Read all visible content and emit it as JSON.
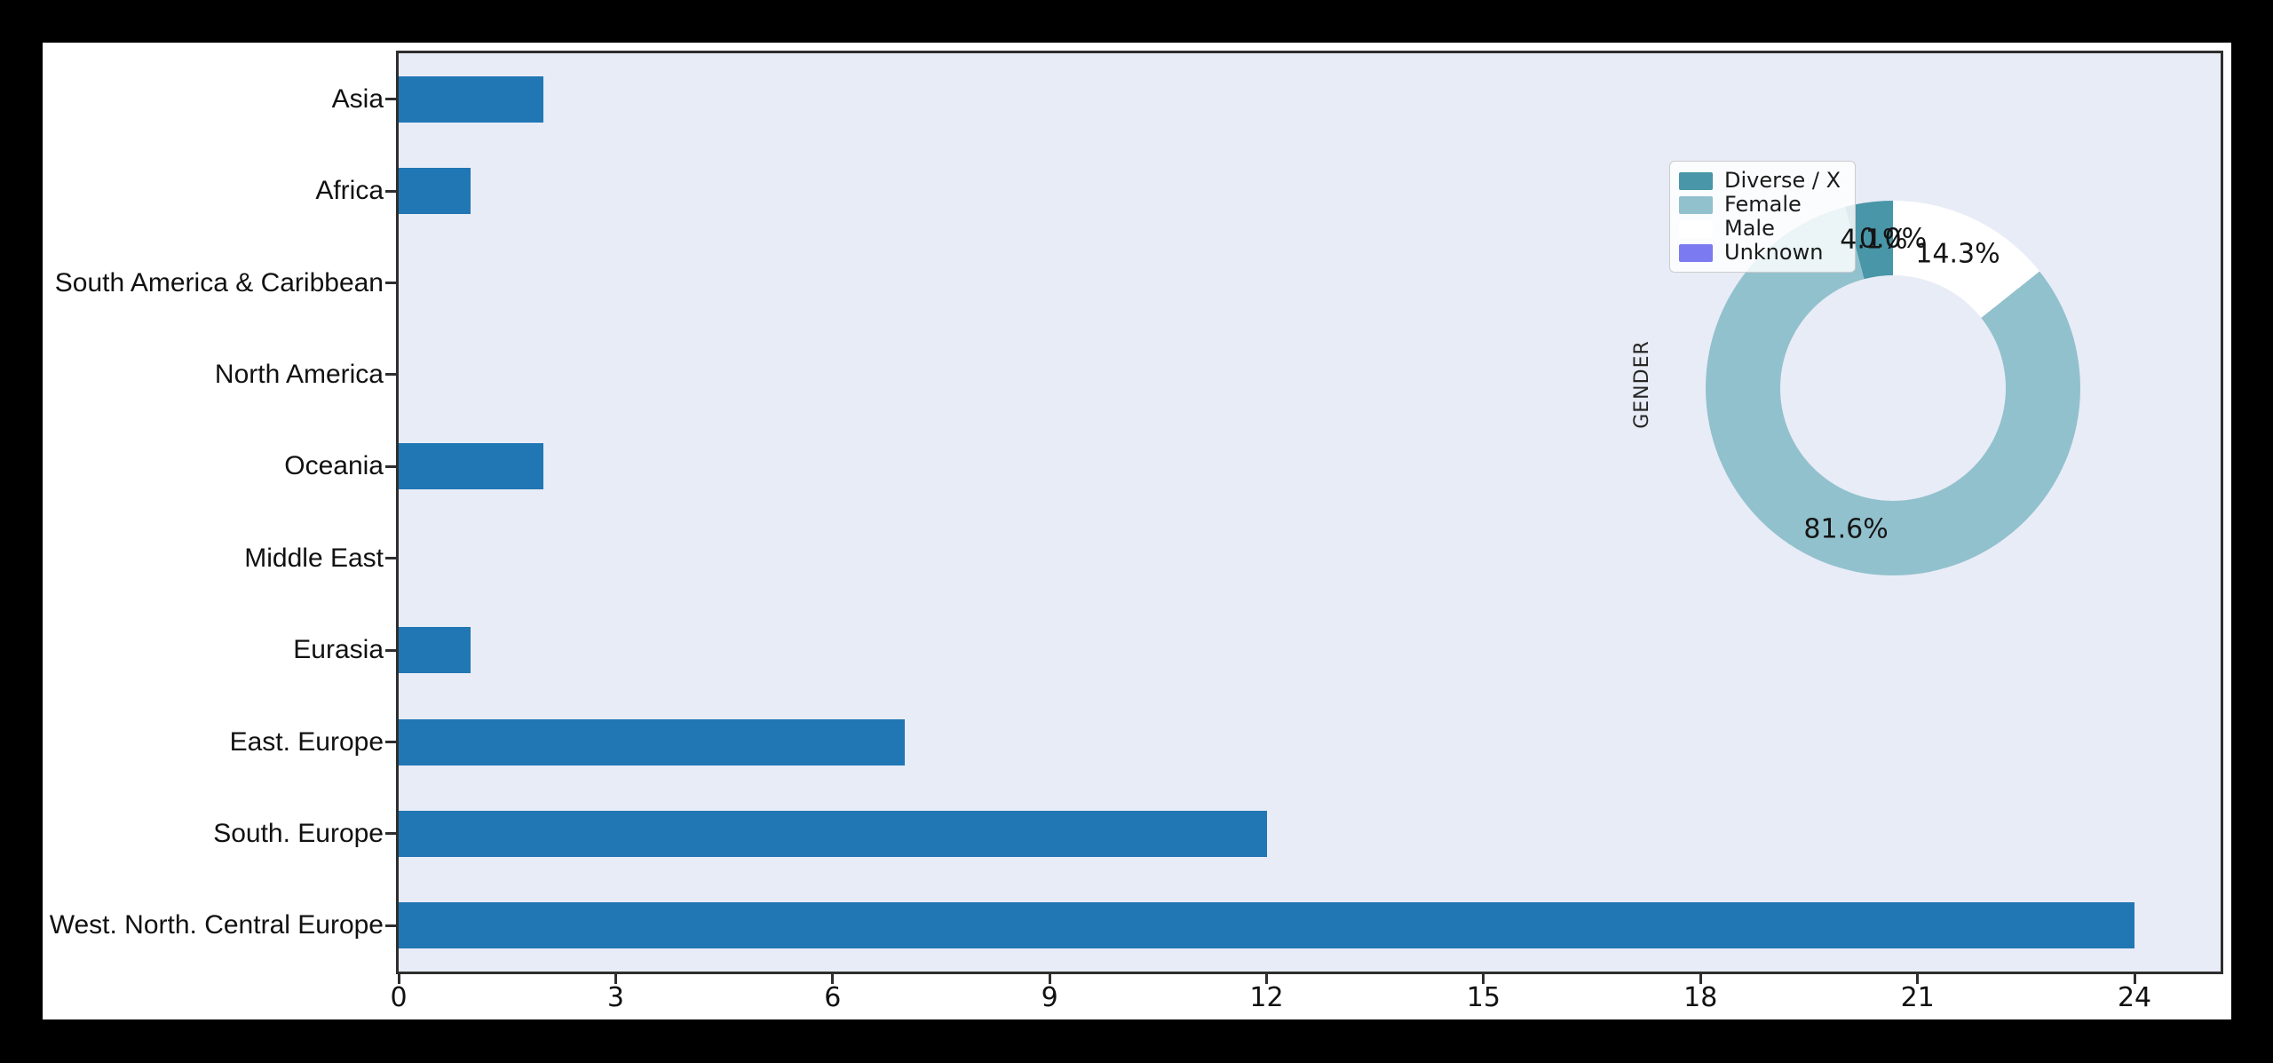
{
  "page": {
    "background_color": "#000000",
    "figure_background_color": "#ffffff",
    "plot_background_color": "#e8ecf6",
    "spine_color": "#2e2e2e"
  },
  "chart_data": [
    {
      "type": "bar",
      "orientation": "horizontal",
      "title": "",
      "xlabel": "",
      "ylabel": "",
      "categories": [
        "Asia",
        "Africa",
        "South America & Caribbean",
        "North America",
        "Oceania",
        "Middle East",
        "Eurasia",
        "East. Europe",
        "South. Europe",
        "West. North. Central Europe"
      ],
      "values": [
        2,
        1,
        0,
        0,
        2,
        0,
        1,
        7,
        12,
        24
      ],
      "xticks": [
        0,
        3,
        6,
        9,
        12,
        15,
        18,
        21,
        24
      ],
      "xlim": [
        0,
        25.2
      ],
      "grid": false,
      "bar_color": "#2176b4"
    },
    {
      "type": "pie",
      "donut": true,
      "title": "",
      "ylabel": "GENDER",
      "start_angle_deg": 90,
      "direction": "counterclockwise",
      "legend_position": "upper left",
      "legend_labels": [
        "Diverse / X",
        "Female",
        "Male",
        "Unknown"
      ],
      "slices": [
        {
          "label": "Diverse / X",
          "pct": 4.1,
          "pct_label": "4.1%",
          "color": "#4896a8"
        },
        {
          "label": "Female",
          "pct": 81.6,
          "pct_label": "81.6%",
          "color": "#92c1ce"
        },
        {
          "label": "Male",
          "pct": 14.3,
          "pct_label": "14.3%",
          "color": "#ffffff"
        },
        {
          "label": "Unknown",
          "pct": 0.0,
          "pct_label": "0.0%",
          "color": "#7c7af0"
        }
      ]
    }
  ]
}
